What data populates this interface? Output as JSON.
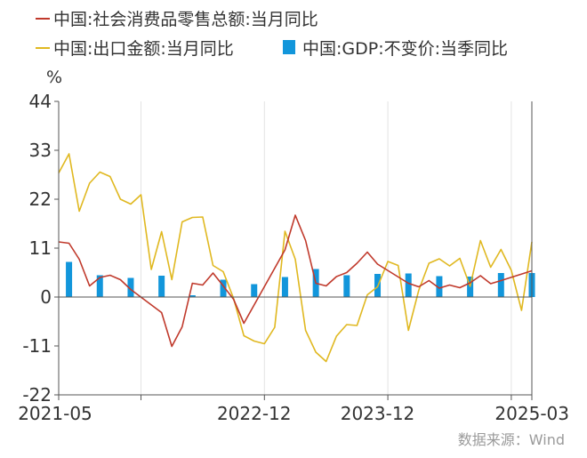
{
  "chart_data": {
    "type": "bar+line",
    "unit": "%",
    "ylim": [
      -22,
      44
    ],
    "yticks": [
      44,
      33,
      22,
      11,
      0,
      -11,
      -22
    ],
    "xtick_labels": [
      "2021-05",
      "2022-12",
      "2023-12",
      "2025-03"
    ],
    "grid": "vertical",
    "legend": "top",
    "source": "数据来源：Wind",
    "series": [
      {
        "name": "中国:社会消费品零售总额:当月同比",
        "kind": "line",
        "color": "#c0392b",
        "x": [
          "2021-05",
          "2021-06",
          "2021-07",
          "2021-08",
          "2021-09",
          "2021-10",
          "2021-11",
          "2021-12",
          "2022-03",
          "2022-04",
          "2022-05",
          "2022-06",
          "2022-07",
          "2022-08",
          "2022-09",
          "2022-10",
          "2022-11",
          "2022-12",
          "2023-03",
          "2023-04",
          "2023-05",
          "2023-06",
          "2023-07",
          "2023-08",
          "2023-09",
          "2023-10",
          "2023-11",
          "2023-12",
          "2024-03",
          "2024-04",
          "2024-05",
          "2024-06",
          "2024-07",
          "2024-08",
          "2024-09",
          "2024-10",
          "2024-11",
          "2024-12",
          "2025-03"
        ],
        "values": [
          12.4,
          12.1,
          8.5,
          2.5,
          4.4,
          4.9,
          3.9,
          1.7,
          -3.5,
          -11.1,
          -6.7,
          3.1,
          2.7,
          5.4,
          2.5,
          -0.5,
          -5.9,
          -1.8,
          10.6,
          18.4,
          12.7,
          3.1,
          2.5,
          4.6,
          5.5,
          7.6,
          10.1,
          7.4,
          3.1,
          2.3,
          3.7,
          2.0,
          2.7,
          2.1,
          3.2,
          4.8,
          3.0,
          3.7,
          5.9
        ]
      },
      {
        "name": "中国:出口金额:当月同比",
        "kind": "line",
        "color": "#e0b820",
        "x": [
          "2021-05",
          "2021-06",
          "2021-07",
          "2021-08",
          "2021-09",
          "2021-10",
          "2021-11",
          "2021-12",
          "2022-01",
          "2022-02",
          "2022-03",
          "2022-04",
          "2022-05",
          "2022-06",
          "2022-07",
          "2022-08",
          "2022-09",
          "2022-10",
          "2022-11",
          "2022-12",
          "2023-01",
          "2023-02",
          "2023-03",
          "2023-04",
          "2023-05",
          "2023-06",
          "2023-07",
          "2023-08",
          "2023-09",
          "2023-10",
          "2023-11",
          "2023-12",
          "2024-01",
          "2024-02",
          "2024-03",
          "2024-04",
          "2024-05",
          "2024-06",
          "2024-07",
          "2024-08",
          "2024-09",
          "2024-10",
          "2024-11",
          "2024-12",
          "2025-01",
          "2025-02",
          "2025-03"
        ],
        "values": [
          27.9,
          32.2,
          19.3,
          25.6,
          28.1,
          27.1,
          22.0,
          20.9,
          23.0,
          6.2,
          14.7,
          3.9,
          16.9,
          17.9,
          18.0,
          7.1,
          5.7,
          -0.3,
          -8.7,
          -9.9,
          -10.5,
          -6.8,
          14.8,
          8.5,
          -7.5,
          -12.4,
          -14.5,
          -8.8,
          -6.2,
          -6.4,
          0.5,
          2.3,
          8.0,
          7.1,
          -7.5,
          1.5,
          7.6,
          8.6,
          7.0,
          8.7,
          2.4,
          12.7,
          6.7,
          10.7,
          6.0,
          -3.0,
          12.4
        ]
      },
      {
        "name": "中国:GDP:不变价:当季同比",
        "kind": "bar",
        "color": "#1296db",
        "x": [
          "2021-06",
          "2021-09",
          "2021-12",
          "2022-03",
          "2022-06",
          "2022-09",
          "2022-12",
          "2023-03",
          "2023-06",
          "2023-09",
          "2023-12",
          "2024-03",
          "2024-06",
          "2024-09",
          "2024-12",
          "2025-03"
        ],
        "values": [
          7.9,
          4.9,
          4.3,
          4.8,
          0.4,
          3.9,
          2.9,
          4.5,
          6.3,
          4.9,
          5.2,
          5.3,
          4.7,
          4.6,
          5.4,
          5.4
        ]
      }
    ]
  }
}
